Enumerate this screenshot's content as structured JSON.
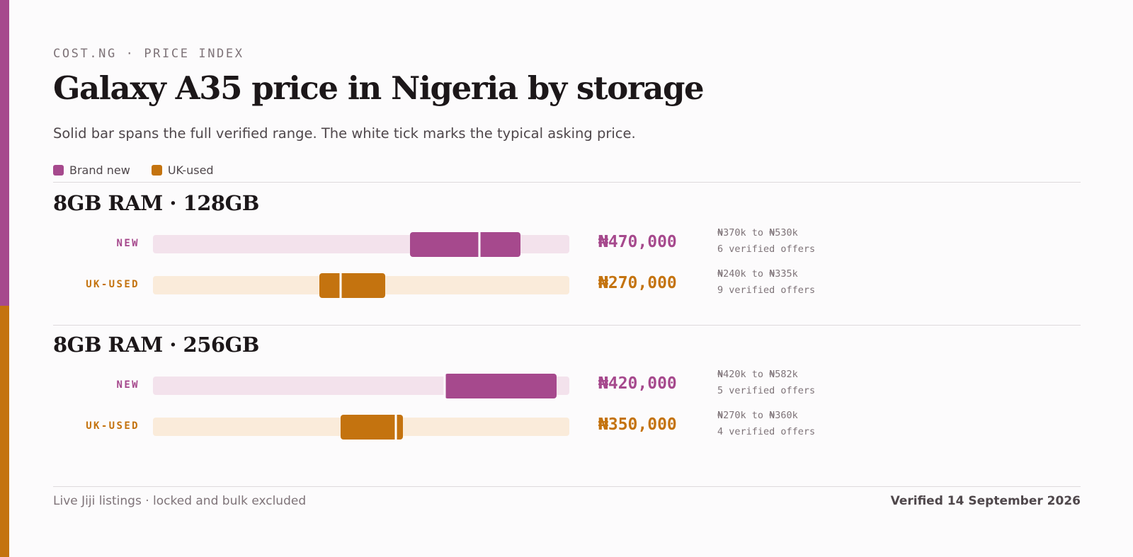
{
  "colors": {
    "new": "#a6498d",
    "new_track": "#f3e2ec",
    "used": "#c4730f",
    "used_track": "#faebda"
  },
  "header": {
    "eyebrow": "COST.NG · PRICE INDEX",
    "title": "Galaxy A35 price in Nigeria by storage",
    "subtitle": "Solid bar spans the full verified range. The white tick marks the typical asking price."
  },
  "legend": [
    {
      "label": "Brand new",
      "color": "#a6498d"
    },
    {
      "label": "UK-used",
      "color": "#c4730f"
    }
  ],
  "chart_data": {
    "type": "range-bar",
    "x_unit": "NGN",
    "xlim": [
      0,
      600000
    ],
    "groups": [
      {
        "title": "8GB RAM · 128GB",
        "rows": [
          {
            "condition": "new",
            "label": "NEW",
            "min": 370000,
            "max": 530000,
            "typical": 470000,
            "typical_text": "₦470,000",
            "range_text": "₦370k to ₦530k",
            "offers_text": "6 verified offers"
          },
          {
            "condition": "used",
            "label": "UK-USED",
            "min": 240000,
            "max": 335000,
            "typical": 270000,
            "typical_text": "₦270,000",
            "range_text": "₦240k to ₦335k",
            "offers_text": "9 verified offers"
          }
        ]
      },
      {
        "title": "8GB RAM · 256GB",
        "rows": [
          {
            "condition": "new",
            "label": "NEW",
            "min": 420000,
            "max": 582000,
            "typical": 420000,
            "typical_text": "₦420,000",
            "range_text": "₦420k to ₦582k",
            "offers_text": "5 verified offers"
          },
          {
            "condition": "used",
            "label": "UK-USED",
            "min": 270000,
            "max": 360000,
            "typical": 350000,
            "typical_text": "₦350,000",
            "range_text": "₦270k to ₦360k",
            "offers_text": "4 verified offers"
          }
        ]
      }
    ]
  },
  "footer": {
    "source": "Live Jiji listings · locked and bulk excluded",
    "verified": "Verified 14 September 2026"
  }
}
